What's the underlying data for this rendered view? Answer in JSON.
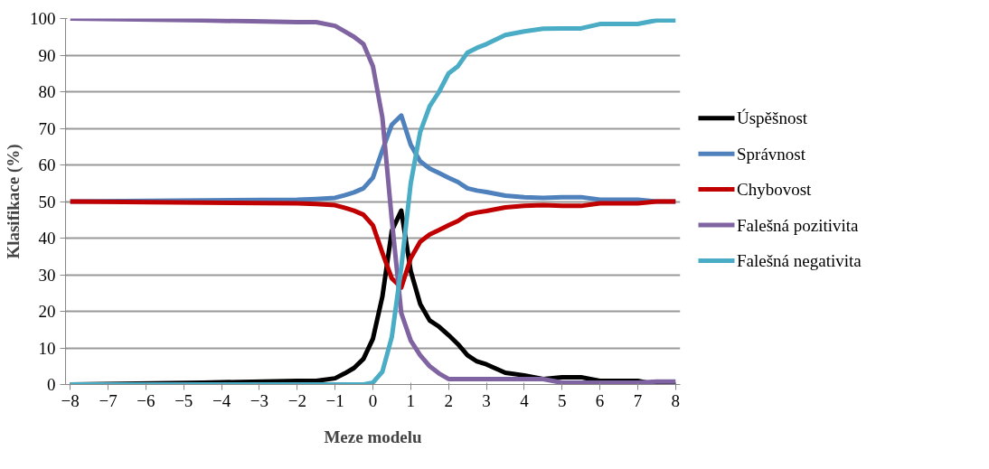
{
  "chart_data": {
    "type": "line",
    "xlabel": "Meze modelu",
    "ylabel": "Klasifikace (%)",
    "x": [
      -8,
      -4.5,
      -2,
      -1.5,
      -1,
      -0.75,
      -0.5,
      -0.25,
      0,
      0.25,
      0.5,
      0.75,
      1,
      1.25,
      1.5,
      1.75,
      2,
      2.25,
      2.5,
      2.75,
      3,
      3.5,
      4,
      4.5,
      5,
      5.5,
      6,
      7,
      7.5,
      8
    ],
    "series": [
      {
        "name": "Úspěšnost",
        "color": "#000000",
        "values": [
          0,
          0.5,
          1,
          1,
          1.7,
          3,
          4.5,
          7,
          12.5,
          24,
          42,
          47.5,
          31,
          22,
          17.5,
          15.8,
          13.5,
          11,
          8,
          6.3,
          5.5,
          3.2,
          2.5,
          1.5,
          2,
          2,
          1,
          1,
          0,
          0
        ]
      },
      {
        "name": "Správnost",
        "color": "#4f81bd",
        "values": [
          50,
          50.3,
          50.5,
          50.7,
          51,
          51.7,
          52.5,
          53.6,
          56.5,
          64,
          71,
          73.5,
          65.5,
          61,
          59,
          57.8,
          56.5,
          55.3,
          53.6,
          53,
          52.6,
          51.6,
          51.2,
          51,
          51.2,
          51.2,
          50.5,
          50.5,
          50,
          50
        ]
      },
      {
        "name": "Chybovost",
        "color": "#c00000",
        "values": [
          50,
          49.7,
          49.5,
          49.3,
          49,
          48.3,
          47.5,
          46.4,
          43.5,
          36,
          29,
          26.5,
          34.5,
          39,
          41,
          42.2,
          43.5,
          44.7,
          46.4,
          47,
          47.4,
          48.4,
          48.8,
          49,
          48.8,
          48.8,
          49.5,
          49.5,
          50,
          50
        ]
      },
      {
        "name": "Falešná pozitivita",
        "color": "#8064a2",
        "values": [
          100,
          99.5,
          99,
          99,
          98,
          96.5,
          95,
          93,
          87,
          73,
          45,
          19.5,
          12,
          8,
          5,
          3,
          1.5,
          1.5,
          1.5,
          1.5,
          1.5,
          1.5,
          1.5,
          1.5,
          0.5,
          0.5,
          0.5,
          0.5,
          0.8,
          0.8
        ]
      },
      {
        "name": "Falešná negativita",
        "color": "#4bacc6",
        "values": [
          0,
          0,
          0,
          0,
          0,
          0,
          0,
          0,
          0.5,
          3.5,
          13,
          32,
          55,
          69,
          76,
          80,
          85,
          87,
          90.7,
          92,
          93,
          95.5,
          96.5,
          97.2,
          97.3,
          97.3,
          98.5,
          98.5,
          99.5,
          99.5
        ]
      }
    ],
    "xlim": [
      -8.125,
      8.125
    ],
    "xticks": [
      -8,
      -7,
      -6,
      -5,
      -4,
      -3,
      -2,
      -1,
      0,
      1,
      2,
      3,
      4,
      5,
      6,
      7,
      8
    ],
    "ylim": [
      0,
      100
    ],
    "yticks": [
      0,
      10,
      20,
      30,
      40,
      50,
      60,
      70,
      80,
      90,
      100
    ],
    "grid": "y",
    "legend": "right",
    "marker": "none",
    "line_style": "solid"
  }
}
